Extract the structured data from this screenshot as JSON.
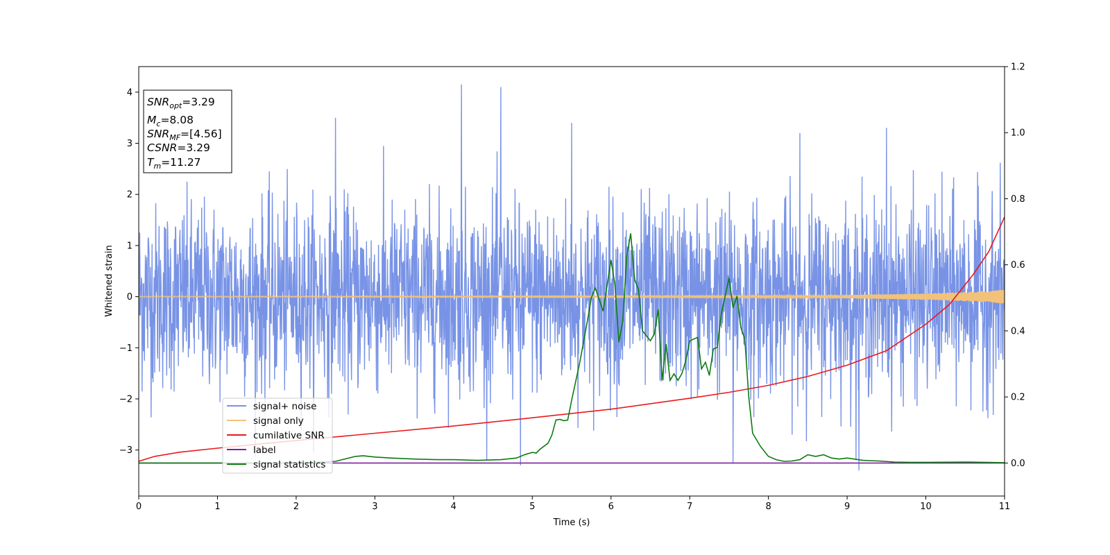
{
  "chart_data": {
    "type": "line",
    "xlabel": "Time (s)",
    "ylabel": "Whitened strain",
    "xlim": [
      0,
      11
    ],
    "ylim": [
      -3.9,
      4.5
    ],
    "y2lim": [
      -0.1,
      1.2
    ],
    "x_ticks": [
      0,
      1,
      2,
      3,
      4,
      5,
      6,
      7,
      8,
      9,
      10,
      11
    ],
    "y_ticks": [
      -3,
      -2,
      -1,
      0,
      1,
      2,
      3,
      4
    ],
    "y2_ticks": [
      0.0,
      0.2,
      0.4,
      0.6,
      0.8,
      1.0,
      1.2
    ],
    "y2_tick_labels": [
      "0.0",
      "0.2",
      "0.4",
      "0.6",
      "0.8",
      "1.0",
      "1.2"
    ],
    "y_tick_labels": [
      "−3",
      "−2",
      "−1",
      "0",
      "1",
      "2",
      "3",
      "4"
    ],
    "legend_placement": "lower-left",
    "grid": false,
    "stats_box": {
      "lines": [
        {
          "sym": "SNR",
          "sub": "opt",
          "val": "=3.29"
        },
        {
          "sym": "M",
          "sub": "c",
          "val": "=8.08"
        },
        {
          "sym": "SNR",
          "sub": "MF",
          "val": "=[4.56]"
        },
        {
          "sym": "CSNR",
          "sub": "",
          "val": "=3.29"
        },
        {
          "sym": "T",
          "sub": "m",
          "val": "=11.27"
        }
      ]
    },
    "series": [
      {
        "name": "signal+ noise",
        "axis": "left",
        "color": "#7893e6",
        "noise_std": 0.9,
        "note_peaks": [
          [
            4.1,
            4.15
          ],
          [
            4.6,
            4.1
          ],
          [
            2.5,
            3.5
          ],
          [
            5.5,
            3.4
          ],
          [
            8.4,
            3.2
          ],
          [
            9.5,
            3.3
          ],
          [
            9.15,
            -3.4
          ],
          [
            4.85,
            -3.3
          ],
          [
            7.55,
            -3.25
          ]
        ]
      },
      {
        "name": "signal only",
        "axis": "left",
        "color": "#f2c27a",
        "amplitude": [
          [
            0,
            0.01
          ],
          [
            8,
            0.02
          ],
          [
            9,
            0.03
          ],
          [
            10,
            0.06
          ],
          [
            10.5,
            0.09
          ],
          [
            11,
            0.13
          ]
        ]
      },
      {
        "name": "cumilative SNR",
        "axis": "right",
        "color": "#e8191c",
        "x": [
          0,
          0.2,
          0.5,
          1,
          2,
          3,
          4,
          5,
          6,
          7,
          7.5,
          8,
          8.5,
          9,
          9.5,
          10,
          10.3,
          10.6,
          10.8,
          11
        ],
        "y": [
          0.005,
          0.02,
          0.032,
          0.045,
          0.068,
          0.09,
          0.112,
          0.137,
          0.163,
          0.196,
          0.214,
          0.235,
          0.262,
          0.296,
          0.34,
          0.42,
          0.48,
          0.57,
          0.64,
          0.745
        ]
      },
      {
        "name": "label",
        "axis": "right",
        "color": "#7f1f9e",
        "x": [
          0,
          11
        ],
        "y": [
          0,
          0
        ]
      },
      {
        "name": "signal statistics",
        "axis": "right",
        "color": "#0d7a10",
        "x": [
          0,
          1,
          2,
          2.5,
          2.75,
          2.85,
          3.0,
          3.2,
          3.5,
          3.8,
          4.0,
          4.3,
          4.6,
          4.8,
          4.9,
          5.0,
          5.05,
          5.1,
          5.2,
          5.25,
          5.3,
          5.35,
          5.4,
          5.45,
          5.5,
          5.6,
          5.7,
          5.75,
          5.8,
          5.9,
          6.0,
          6.05,
          6.1,
          6.15,
          6.2,
          6.25,
          6.3,
          6.35,
          6.4,
          6.5,
          6.55,
          6.6,
          6.65,
          6.7,
          6.75,
          6.8,
          6.85,
          6.9,
          6.95,
          7.0,
          7.1,
          7.15,
          7.2,
          7.25,
          7.3,
          7.35,
          7.4,
          7.5,
          7.55,
          7.6,
          7.65,
          7.7,
          7.75,
          7.8,
          7.85,
          7.9,
          8.0,
          8.1,
          8.2,
          8.3,
          8.4,
          8.5,
          8.6,
          8.7,
          8.8,
          8.9,
          9.0,
          9.2,
          9.4,
          9.6,
          9.8,
          10.0,
          10.5,
          11
        ],
        "y": [
          0.0,
          0.0,
          0.0,
          0.005,
          0.02,
          0.022,
          0.018,
          0.015,
          0.012,
          0.01,
          0.01,
          0.008,
          0.01,
          0.015,
          0.025,
          0.032,
          0.03,
          0.042,
          0.06,
          0.085,
          0.13,
          0.132,
          0.128,
          0.13,
          0.19,
          0.3,
          0.43,
          0.5,
          0.53,
          0.46,
          0.615,
          0.54,
          0.365,
          0.43,
          0.625,
          0.695,
          0.555,
          0.525,
          0.4,
          0.37,
          0.39,
          0.465,
          0.25,
          0.36,
          0.25,
          0.27,
          0.25,
          0.27,
          0.31,
          0.37,
          0.38,
          0.285,
          0.305,
          0.265,
          0.345,
          0.35,
          0.45,
          0.56,
          0.47,
          0.505,
          0.41,
          0.375,
          0.2,
          0.09,
          0.07,
          0.05,
          0.02,
          0.01,
          0.005,
          0.006,
          0.01,
          0.025,
          0.02,
          0.025,
          0.015,
          0.012,
          0.015,
          0.008,
          0.006,
          0.003,
          0.002,
          0.002,
          0.003,
          0.001
        ]
      }
    ]
  }
}
